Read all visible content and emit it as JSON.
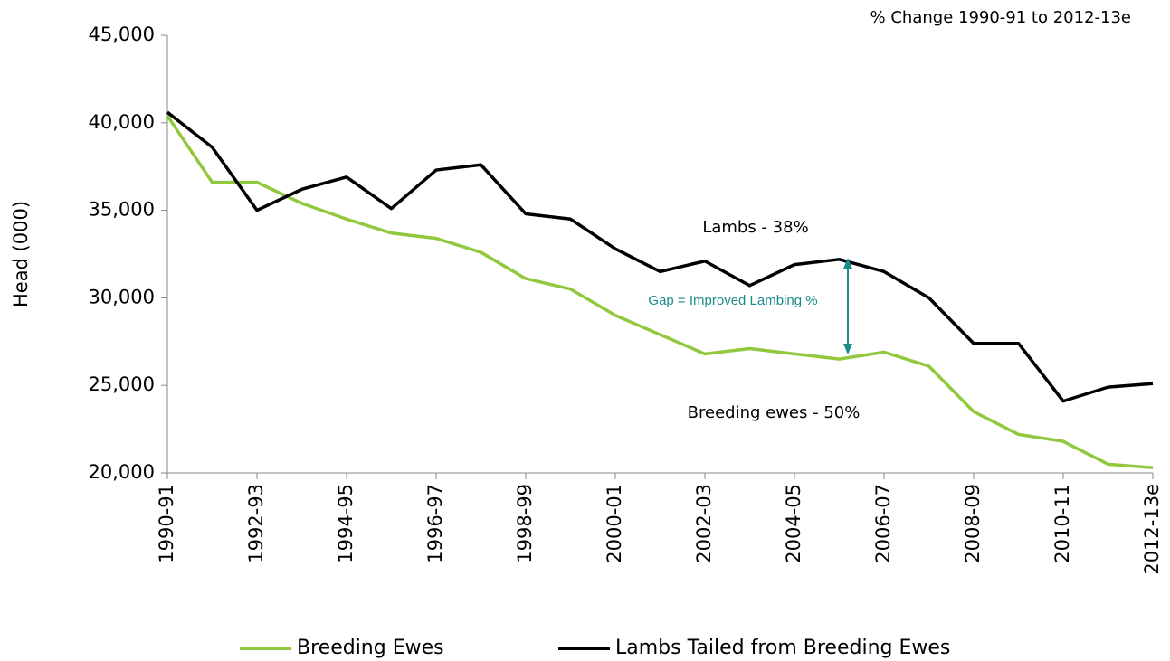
{
  "chart_data": {
    "type": "line",
    "subtitle": "% Change 1990-91 to 2012-13e",
    "y_label": "Head (000)",
    "categories": [
      "1990-91",
      null,
      "1992-93",
      null,
      "1994-95",
      null,
      "1996-97",
      null,
      "1998-99",
      null,
      "2000-01",
      null,
      "2002-03",
      null,
      "2004-05",
      null,
      "2006-07",
      null,
      "2008-09",
      null,
      "2010-11",
      null,
      "2012-13e"
    ],
    "series": [
      {
        "name": "Breeding Ewes",
        "color": "#92c83e",
        "values": [
          40400,
          36600,
          36600,
          35400,
          34500,
          33700,
          33400,
          32600,
          31100,
          30500,
          29000,
          27900,
          26800,
          27100,
          26800,
          26500,
          26900,
          26100,
          23500,
          22200,
          21800,
          20500,
          20300
        ]
      },
      {
        "name": "Lambs Tailed from Breeding Ewes",
        "color": "#000000",
        "values": [
          40600,
          38600,
          35000,
          36200,
          36900,
          35100,
          37300,
          37600,
          34800,
          34500,
          32800,
          31500,
          32100,
          30700,
          31900,
          32200,
          31500,
          30000,
          27400,
          27400,
          24100,
          24900,
          25100
        ]
      }
    ],
    "ylim": [
      20000,
      45000
    ],
    "yticks": [
      {
        "value": 20000,
        "label": "20,000"
      },
      {
        "value": 25000,
        "label": "25,000"
      },
      {
        "value": 30000,
        "label": "30,000"
      },
      {
        "value": 35000,
        "label": "35,000"
      },
      {
        "value": 40000,
        "label": "40,000"
      },
      {
        "value": 45000,
        "label": "45,000"
      }
    ],
    "annotations": [
      "Lambs - 38%",
      "Breeding ewes - 50%",
      "Gap = Improved Lambing %"
    ],
    "annotation_color": "#1a8a8a",
    "legend": "bottom"
  }
}
